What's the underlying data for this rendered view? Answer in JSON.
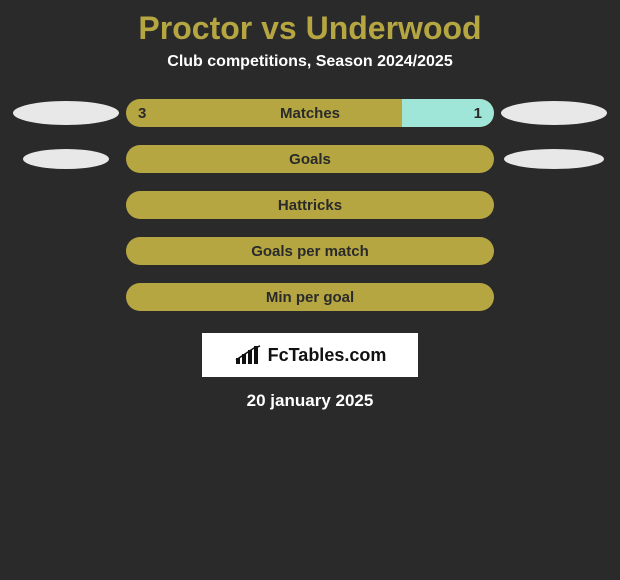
{
  "colors": {
    "background": "#2a2a2a",
    "title": "#b5a642",
    "text": "#ffffff",
    "bar_left": "#b5a642",
    "bar_right": "#9fe6d8",
    "ellipse": "#e8e8e8",
    "logo_bg": "#ffffff",
    "logo_text": "#111111",
    "bar_label": "#2a2a2a"
  },
  "title": "Proctor vs Underwood",
  "subtitle": "Club competitions, Season 2024/2025",
  "date": "20 january 2025",
  "logo": {
    "text": "FcTables.com"
  },
  "stats": [
    {
      "label": "Matches",
      "left_val": "3",
      "right_val": "1",
      "right_pct": 25,
      "show_vals": true,
      "left_ellipse_w": 106,
      "left_ellipse_h": 24,
      "right_ellipse_w": 106,
      "right_ellipse_h": 24
    },
    {
      "label": "Goals",
      "left_val": "",
      "right_val": "",
      "right_pct": 0,
      "show_vals": false,
      "left_ellipse_w": 86,
      "left_ellipse_h": 20,
      "right_ellipse_w": 100,
      "right_ellipse_h": 20
    },
    {
      "label": "Hattricks",
      "left_val": "",
      "right_val": "",
      "right_pct": 0,
      "show_vals": false,
      "left_ellipse_w": 0,
      "left_ellipse_h": 0,
      "right_ellipse_w": 0,
      "right_ellipse_h": 0
    },
    {
      "label": "Goals per match",
      "left_val": "",
      "right_val": "",
      "right_pct": 0,
      "show_vals": false,
      "left_ellipse_w": 0,
      "left_ellipse_h": 0,
      "right_ellipse_w": 0,
      "right_ellipse_h": 0
    },
    {
      "label": "Min per goal",
      "left_val": "",
      "right_val": "",
      "right_pct": 0,
      "show_vals": false,
      "left_ellipse_w": 0,
      "left_ellipse_h": 0,
      "right_ellipse_w": 0,
      "right_ellipse_h": 0
    }
  ]
}
